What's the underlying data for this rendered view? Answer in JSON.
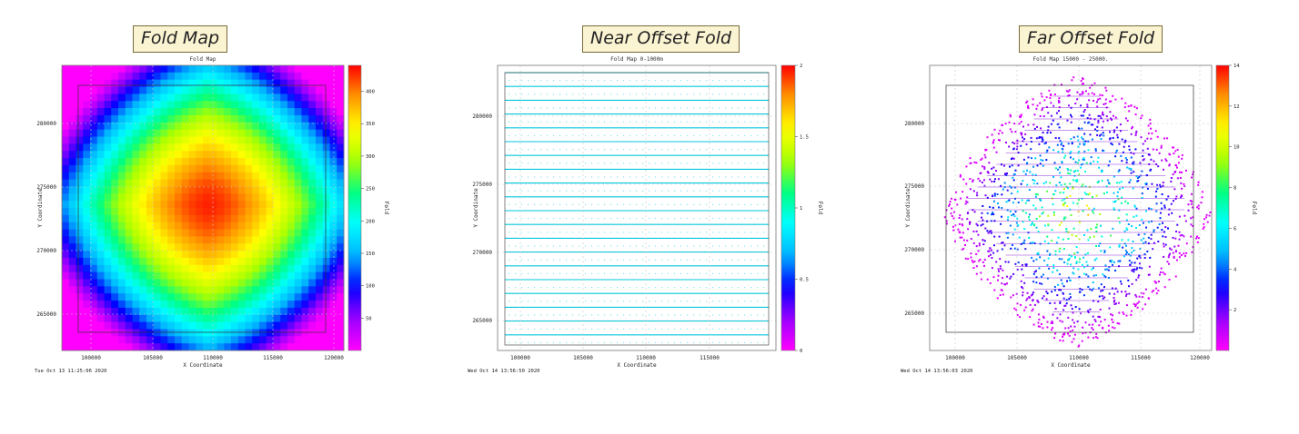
{
  "chart_data": [
    {
      "type": "heatmap",
      "caption": "Fold Map",
      "title": "Fold Map",
      "xlabel": "X Coordinate",
      "ylabel": "Y Coordinate",
      "colorbar_label": "Fold",
      "x_ticks": [
        "100000",
        "105000",
        "110000",
        "115000",
        "120000"
      ],
      "y_ticks": [
        "265000",
        "270000",
        "275000",
        "280000"
      ],
      "cbar_ticks": [
        "50",
        "100",
        "150",
        "200",
        "250",
        "300",
        "350",
        "400"
      ],
      "cbar_range": [
        0,
        440
      ],
      "peak_fold": 430,
      "timestamp": "Tue Oct 13 11:25:06 2020",
      "grid": true
    },
    {
      "type": "heatmap",
      "caption": "Near Offset Fold",
      "title": "Fold Map 0-1000m",
      "xlabel": "X Coordinate",
      "ylabel": "Y Coordinate",
      "colorbar_label": "Fold",
      "x_ticks": [
        "100000",
        "105000",
        "110000",
        "115000"
      ],
      "y_ticks": [
        "265000",
        "270000",
        "275000",
        "280000"
      ],
      "cbar_ticks": [
        "0",
        "0.5",
        "1",
        "1.5",
        "2"
      ],
      "cbar_range": [
        0,
        2
      ],
      "dominant_fold": 1,
      "timestamp": "Wed Oct 14 13:56:50 2020",
      "grid": true
    },
    {
      "type": "heatmap",
      "caption": "Far Offset Fold",
      "title": "Fold Map 15000 - 25000.",
      "xlabel": "X Coordinate",
      "ylabel": "Y Coordinate",
      "colorbar_label": "Fold",
      "x_ticks": [
        "100000",
        "105000",
        "110000",
        "115000",
        "120000"
      ],
      "y_ticks": [
        "265000",
        "270000",
        "275000",
        "280000"
      ],
      "cbar_ticks": [
        "2",
        "4",
        "6",
        "8",
        "10",
        "12",
        "14"
      ],
      "cbar_range": [
        0,
        14
      ],
      "peak_fold": 11,
      "timestamp": "Wed Oct 14 13:56:03 2020",
      "grid": true
    }
  ],
  "colors": {
    "palette": [
      "#ff00ff",
      "#9b00ff",
      "#0000ff",
      "#00b4ff",
      "#00ffff",
      "#00ff80",
      "#aaff00",
      "#ffff00",
      "#ff9900",
      "#ff0000"
    ],
    "near_line": "#00c8dc",
    "frame": "#555555"
  }
}
